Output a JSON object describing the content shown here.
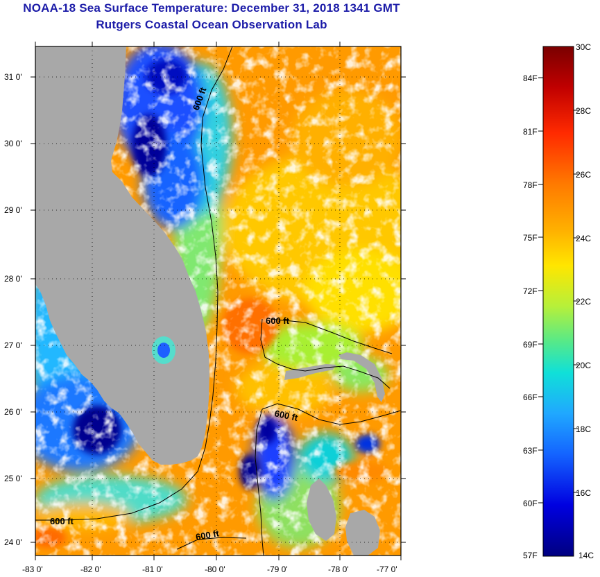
{
  "title": {
    "line1": "NOAA-18 Sea Surface Temperature:  December 31, 2018 1341 GMT",
    "line2": "Rutgers Coastal Ocean Observation Lab"
  },
  "map": {
    "lat_labels": [
      "31 0'",
      "30 0'",
      "29 0'",
      "28 0'",
      "27 0'",
      "26 0'",
      "25 0'",
      "24 0'"
    ],
    "lon_labels": [
      "-83 0'",
      "-82 0'",
      "-81 0'",
      "-80 0'",
      "-79 0'",
      "-78 0'",
      "-77 0'"
    ],
    "isobath_label": "600 ft",
    "colors": {
      "land": "#a8a8a8",
      "cloud": "#ffffff",
      "frame": "#000000"
    }
  },
  "colorbar": {
    "celsius_labels": [
      "30C",
      "28C",
      "26C",
      "24C",
      "22C",
      "20C",
      "18C",
      "16C",
      "14C"
    ],
    "fahrenheit_labels": [
      "84F",
      "81F",
      "78F",
      "75F",
      "72F",
      "69F",
      "66F",
      "63F",
      "60F",
      "57F"
    ],
    "stops": [
      "#7a0000",
      "#c00000",
      "#ff2a00",
      "#ff7a00",
      "#ffb000",
      "#ffe600",
      "#b6f03a",
      "#55e98a",
      "#10e0d8",
      "#20a8ff",
      "#1464ff",
      "#0000e0",
      "#000080"
    ]
  }
}
